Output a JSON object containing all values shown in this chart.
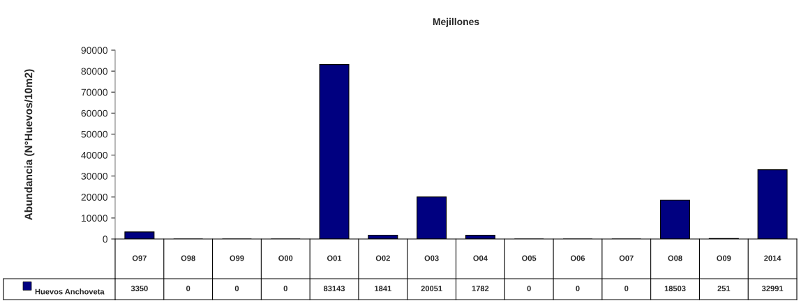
{
  "chart_data": {
    "type": "bar",
    "title": "Mejillones",
    "ylabel": "Abundancia (N°Huevos/10m2)",
    "categories": [
      "O97",
      "O98",
      "O99",
      "O00",
      "O01",
      "O02",
      "O03",
      "O04",
      "O05",
      "O06",
      "O07",
      "O08",
      "O09",
      "2014"
    ],
    "series": [
      {
        "name": "Huevos Anchoveta",
        "color": "#000080",
        "values": [
          3350,
          0,
          0,
          0,
          83143,
          1841,
          20051,
          1782,
          0,
          0,
          0,
          18503,
          251,
          32991
        ]
      }
    ],
    "ylim": [
      0,
      90000
    ],
    "yticks": [
      0,
      10000,
      20000,
      30000,
      40000,
      50000,
      60000,
      70000,
      80000,
      90000
    ],
    "data_labels": true,
    "grid": false
  }
}
